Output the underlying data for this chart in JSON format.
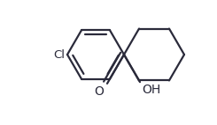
{
  "bg_color": "#ffffff",
  "line_color": "#2a2a3a",
  "line_width": 1.6,
  "figsize": [
    2.45,
    1.42
  ],
  "dpi": 100,
  "cl_text": "Cl",
  "o_text": "O",
  "oh_text": "OH"
}
